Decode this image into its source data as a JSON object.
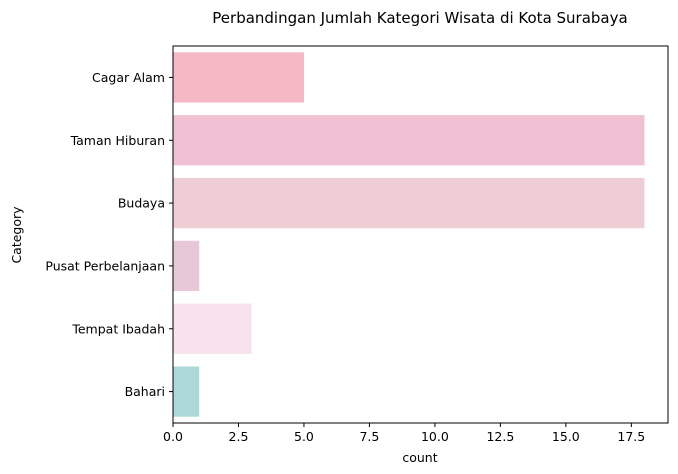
{
  "chart_data": {
    "type": "bar",
    "orientation": "horizontal",
    "title": "Perbandingan Jumlah Kategori Wisata di Kota Surabaya",
    "xlabel": "count",
    "ylabel": "Category",
    "categories": [
      "Cagar Alam",
      "Taman Hiburan",
      "Budaya",
      "Pusat Perbelanjaan",
      "Tempat Ibadah",
      "Bahari"
    ],
    "values": [
      5,
      18,
      18,
      1,
      3,
      1
    ],
    "colors": [
      "#f7b8c5",
      "#efc1d3",
      "#eecdd5",
      "#e6c8d9",
      "#f8e3ec",
      "#acd8d8"
    ],
    "xlim": [
      0,
      18.9
    ],
    "xticks": [
      0,
      2.5,
      5,
      7.5,
      10,
      12.5,
      15,
      17.5
    ],
    "xtick_labels": [
      "0.0",
      "2.5",
      "5.0",
      "7.5",
      "10.0",
      "12.5",
      "15.0",
      "17.5"
    ],
    "grid": false
  }
}
